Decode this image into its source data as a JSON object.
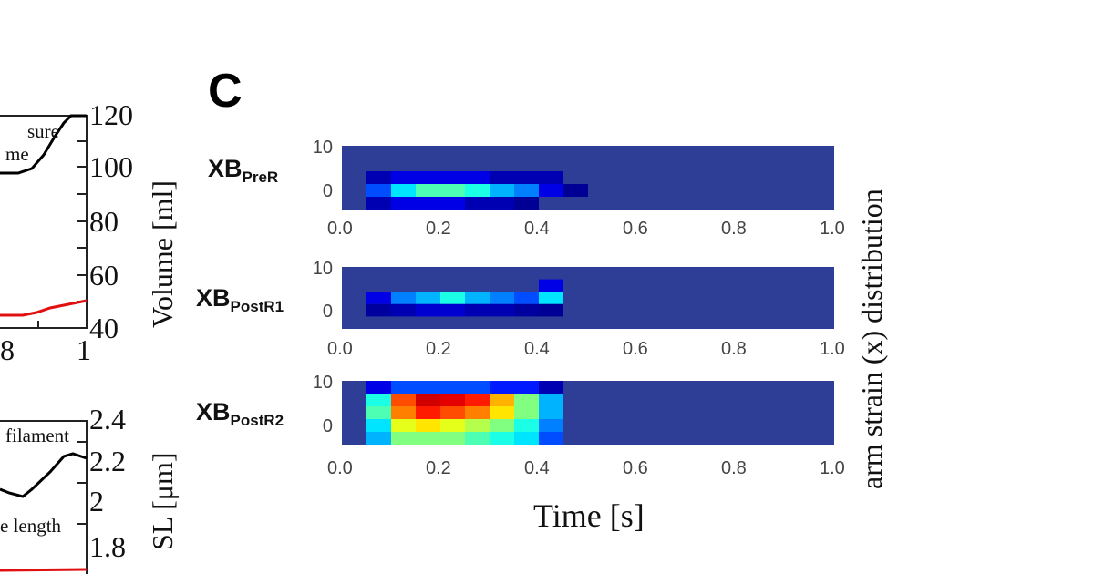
{
  "panel_label": "C",
  "left_partial": {
    "top": {
      "right_ylabel": "Volume [ml]",
      "right_yticks": [
        "120",
        "100",
        "80",
        "60",
        "40"
      ],
      "xticks": [
        "8",
        "1"
      ],
      "legend_fragments": [
        "sure",
        "me"
      ],
      "series_colors": [
        "#000000",
        "#e01010"
      ]
    },
    "bottom": {
      "right_ylabel": "SL [μm]",
      "right_yticks": [
        "2.4",
        "2.2",
        "2",
        "1.8"
      ],
      "legend_fragments": [
        "filament",
        "e length"
      ],
      "series_colors": [
        "#000000",
        "#e01010"
      ]
    }
  },
  "chart_data": [
    {
      "type": "heatmap",
      "row_label": {
        "main": "XB",
        "sub": "PreR"
      },
      "x": "Time [s]",
      "xticks": [
        "0.0",
        "0.2",
        "0.4",
        "0.6",
        "0.8",
        "1.0"
      ],
      "xlim": [
        0,
        1
      ],
      "yticks": [
        "10",
        "0"
      ],
      "ylim": [
        -4,
        11
      ],
      "x_bin_width": 0.05,
      "y_bin_edges": [
        11,
        8,
        5,
        2,
        -1,
        -4
      ],
      "values": [
        [
          0,
          0,
          0,
          0,
          0,
          0,
          0,
          0,
          0,
          0,
          0,
          0,
          0,
          0,
          0,
          0,
          0,
          0,
          0,
          0
        ],
        [
          0,
          0,
          0,
          0,
          0,
          0,
          0,
          0,
          0,
          0,
          0,
          0,
          0,
          0,
          0,
          0,
          0,
          0,
          0,
          0
        ],
        [
          0,
          0.05,
          0.1,
          0.1,
          0.1,
          0.1,
          0.05,
          0.05,
          0.05,
          0,
          0,
          0,
          0,
          0,
          0,
          0,
          0,
          0,
          0,
          0
        ],
        [
          0,
          0.2,
          0.35,
          0.45,
          0.45,
          0.4,
          0.3,
          0.25,
          0.1,
          0.02,
          0,
          0,
          0,
          0,
          0,
          0,
          0,
          0,
          0,
          0
        ],
        [
          0,
          0.05,
          0.1,
          0.1,
          0.1,
          0.05,
          0.05,
          0.02,
          0,
          0,
          0,
          0,
          0,
          0,
          0,
          0,
          0,
          0,
          0,
          0
        ]
      ]
    },
    {
      "type": "heatmap",
      "row_label": {
        "main": "XB",
        "sub": "PostR1"
      },
      "xticks": [
        "0.0",
        "0.2",
        "0.4",
        "0.6",
        "0.8",
        "1.0"
      ],
      "xlim": [
        0,
        1
      ],
      "yticks": [
        "10",
        "0"
      ],
      "ylim": [
        -4,
        11
      ],
      "x_bin_width": 0.05,
      "y_bin_edges": [
        11,
        8,
        5,
        2,
        -1,
        -4
      ],
      "values": [
        [
          0,
          0,
          0,
          0,
          0,
          0,
          0,
          0,
          0,
          0,
          0,
          0,
          0,
          0,
          0,
          0,
          0,
          0,
          0,
          0
        ],
        [
          0,
          0,
          0,
          0,
          0,
          0,
          0,
          0,
          0.1,
          0,
          0,
          0,
          0,
          0,
          0,
          0,
          0,
          0,
          0,
          0
        ],
        [
          0,
          0.1,
          0.25,
          0.3,
          0.4,
          0.3,
          0.25,
          0.2,
          0.35,
          0,
          0,
          0,
          0,
          0,
          0,
          0,
          0,
          0,
          0,
          0
        ],
        [
          0,
          0.03,
          0.05,
          0.08,
          0.08,
          0.05,
          0.05,
          0.03,
          0.02,
          0,
          0,
          0,
          0,
          0,
          0,
          0,
          0,
          0,
          0,
          0
        ],
        [
          0,
          0,
          0,
          0,
          0,
          0,
          0,
          0,
          0,
          0,
          0,
          0,
          0,
          0,
          0,
          0,
          0,
          0,
          0,
          0
        ]
      ]
    },
    {
      "type": "heatmap",
      "row_label": {
        "main": "XB",
        "sub": "PostR2"
      },
      "xticks": [
        "0.0",
        "0.2",
        "0.4",
        "0.6",
        "0.8",
        "1.0"
      ],
      "xlim": [
        0,
        1
      ],
      "yticks": [
        "10",
        "0"
      ],
      "ylim": [
        -4,
        11
      ],
      "x_bin_width": 0.05,
      "y_bin_edges": [
        11,
        8,
        5,
        2,
        -1,
        -4
      ],
      "values": [
        [
          0,
          0.1,
          0.2,
          0.2,
          0.2,
          0.2,
          0.15,
          0.15,
          0.05,
          0,
          0,
          0,
          0,
          0,
          0,
          0,
          0,
          0,
          0,
          0
        ],
        [
          0,
          0.4,
          0.8,
          0.92,
          0.9,
          0.85,
          0.7,
          0.5,
          0.3,
          0,
          0,
          0,
          0,
          0,
          0,
          0,
          0,
          0,
          0,
          0
        ],
        [
          0,
          0.45,
          0.75,
          0.85,
          0.8,
          0.75,
          0.65,
          0.5,
          0.3,
          0,
          0,
          0,
          0,
          0,
          0,
          0,
          0,
          0,
          0,
          0
        ],
        [
          0,
          0.35,
          0.6,
          0.65,
          0.6,
          0.55,
          0.5,
          0.4,
          0.25,
          0,
          0,
          0,
          0,
          0,
          0,
          0,
          0,
          0,
          0,
          0
        ],
        [
          0,
          0.3,
          0.5,
          0.5,
          0.5,
          0.45,
          0.4,
          0.35,
          0.2,
          0,
          0,
          0,
          0,
          0,
          0,
          0,
          0,
          0,
          0,
          0
        ]
      ]
    }
  ],
  "shared": {
    "xlabel": "Time [s]",
    "ylabel": "arm strain (x) distribution",
    "colormap": "jet",
    "background": "#2e3d96"
  }
}
